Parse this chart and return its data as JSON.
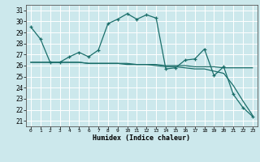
{
  "xlabel": "Humidex (Indice chaleur)",
  "background_color": "#cce8ec",
  "grid_color": "#ffffff",
  "line_color": "#1a6e6a",
  "xlim": [
    -0.5,
    23.5
  ],
  "ylim": [
    20.5,
    31.5
  ],
  "yticks": [
    21,
    22,
    23,
    24,
    25,
    26,
    27,
    28,
    29,
    30,
    31
  ],
  "xticks": [
    0,
    1,
    2,
    3,
    4,
    5,
    6,
    7,
    8,
    9,
    10,
    11,
    12,
    13,
    14,
    15,
    16,
    17,
    18,
    19,
    20,
    21,
    22,
    23
  ],
  "line1": [
    29.5,
    28.4,
    26.3,
    26.3,
    26.8,
    27.2,
    26.8,
    27.4,
    29.8,
    30.2,
    30.7,
    30.2,
    30.6,
    30.3,
    25.7,
    25.8,
    26.5,
    26.6,
    27.5,
    25.1,
    25.9,
    23.4,
    22.2,
    21.4
  ],
  "line2": [
    26.3,
    26.3,
    26.3,
    26.3,
    26.3,
    26.3,
    26.2,
    26.2,
    26.2,
    26.2,
    26.2,
    26.1,
    26.1,
    26.1,
    26.0,
    26.0,
    26.0,
    25.9,
    25.9,
    25.9,
    25.8,
    25.8,
    25.8,
    25.8
  ],
  "line3": [
    26.3,
    26.3,
    26.3,
    26.3,
    26.3,
    26.3,
    26.2,
    26.2,
    26.2,
    26.2,
    26.1,
    26.1,
    26.1,
    26.0,
    25.9,
    25.9,
    25.8,
    25.7,
    25.7,
    25.5,
    25.3,
    24.2,
    22.8,
    21.5
  ]
}
